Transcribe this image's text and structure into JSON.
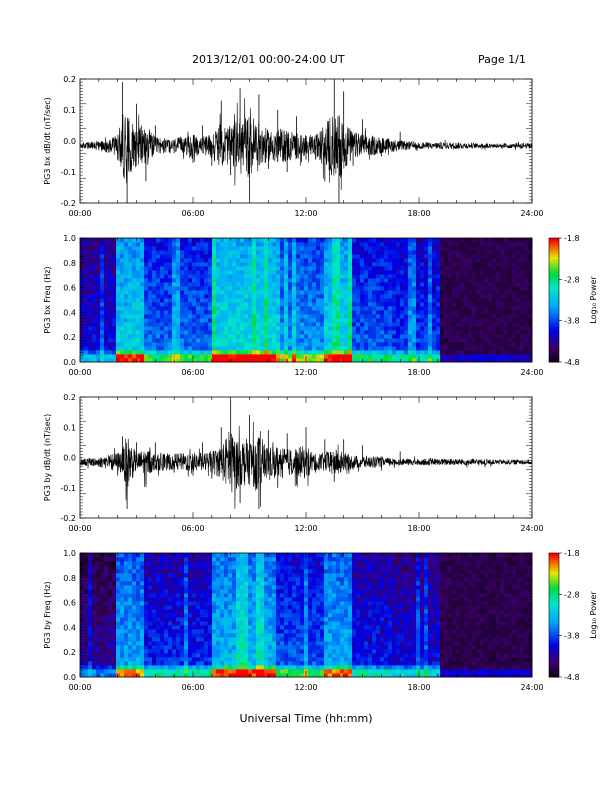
{
  "header": {
    "date_range": "2013/12/01   00:00-24:00 UT",
    "page": "Page 1/1"
  },
  "xlabel": "Universal Time (hh:mm)",
  "colorbar": {
    "label": "Log₁₀ Power",
    "ticks": [
      "-1.8",
      "-2.8",
      "-3.8",
      "-4.8"
    ]
  },
  "chart_data": [
    {
      "type": "line",
      "ylabel": "PG3 bx dB/dt (nT/sec)",
      "xlim": [
        "00:00",
        "24:00"
      ],
      "xticks": [
        "00:00",
        "06:00",
        "12:00",
        "18:00",
        "24:00"
      ],
      "ylim": [
        -0.2,
        0.2
      ],
      "yticks": [
        "-0.2",
        "-0.1",
        "0.0",
        "0.1",
        "0.2"
      ],
      "series": [
        {
          "x": [
            "00:00",
            "01:00",
            "02:00",
            "02:15",
            "02:30",
            "03:00",
            "03:30",
            "04:00",
            "05:00",
            "06:00",
            "06:30",
            "07:00",
            "07:30",
            "08:00",
            "08:30",
            "09:00",
            "09:30",
            "10:00",
            "10:30",
            "11:00",
            "11:30",
            "12:00",
            "12:30",
            "13:00",
            "13:30",
            "13:45",
            "14:00",
            "14:30",
            "15:00",
            "16:00",
            "17:00",
            "18:00",
            "19:00",
            "20:00",
            "21:00",
            "22:00",
            "23:00",
            "24:00"
          ],
          "y": [
            -0.015,
            -0.03,
            -0.06,
            0.19,
            -0.2,
            0.12,
            -0.13,
            0.05,
            -0.04,
            -0.07,
            0.05,
            -0.08,
            0.13,
            -0.11,
            0.17,
            -0.19,
            0.15,
            -0.09,
            0.1,
            -0.1,
            0.08,
            -0.06,
            -0.06,
            -0.13,
            0.2,
            -0.2,
            0.16,
            -0.08,
            0.07,
            -0.05,
            0.03,
            -0.02,
            -0.02,
            -0.02,
            -0.015,
            -0.015,
            -0.015,
            -0.015
          ]
        }
      ]
    },
    {
      "type": "heatmap",
      "ylabel": "PG3 bx Freq (Hz)",
      "xlim": [
        "00:00",
        "24:00"
      ],
      "xticks": [
        "00:00",
        "06:00",
        "12:00",
        "18:00",
        "24:00"
      ],
      "ylim": [
        0.0,
        1.0
      ],
      "yticks": [
        "0.0",
        "0.2",
        "0.4",
        "0.6",
        "0.8",
        "1.0"
      ],
      "zlim": [
        -4.8,
        -1.8
      ],
      "zlabel": "Log₁₀ Power"
    },
    {
      "type": "line",
      "ylabel": "PG3 by dB/dt (nT/sec)",
      "xlim": [
        "00:00",
        "24:00"
      ],
      "xticks": [
        "00:00",
        "06:00",
        "12:00",
        "18:00",
        "24:00"
      ],
      "ylim": [
        -0.2,
        0.2
      ],
      "yticks": [
        "-0.2",
        "-0.1",
        "0.0",
        "0.1",
        "0.2"
      ],
      "series": [
        {
          "x": [
            "00:00",
            "01:00",
            "02:00",
            "02:15",
            "02:30",
            "03:00",
            "03:30",
            "04:00",
            "05:00",
            "06:00",
            "06:30",
            "07:00",
            "07:30",
            "08:00",
            "08:30",
            "09:00",
            "09:30",
            "10:00",
            "10:30",
            "11:00",
            "11:30",
            "12:00",
            "12:30",
            "13:00",
            "13:30",
            "14:00",
            "14:30",
            "15:00",
            "16:00",
            "17:00",
            "18:00",
            "19:00",
            "20:00",
            "21:00",
            "22:00",
            "23:00",
            "24:00"
          ],
          "y": [
            -0.02,
            -0.03,
            -0.06,
            0.07,
            -0.17,
            0.05,
            -0.09,
            0.05,
            -0.05,
            -0.06,
            0.05,
            -0.07,
            0.1,
            0.19,
            -0.15,
            0.14,
            -0.17,
            0.09,
            -0.1,
            0.08,
            -0.09,
            0.1,
            -0.05,
            0.06,
            -0.08,
            0.06,
            -0.04,
            0.04,
            -0.03,
            0.02,
            -0.02,
            -0.02,
            -0.02,
            -0.02,
            -0.015,
            -0.015,
            -0.015
          ]
        }
      ]
    },
    {
      "type": "heatmap",
      "ylabel": "PG3 by Freq (Hz)",
      "xlim": [
        "00:00",
        "24:00"
      ],
      "xticks": [
        "00:00",
        "06:00",
        "12:00",
        "18:00",
        "24:00"
      ],
      "ylim": [
        0.0,
        1.0
      ],
      "yticks": [
        "0.0",
        "0.2",
        "0.4",
        "0.6",
        "0.8",
        "1.0"
      ],
      "zlim": [
        -4.8,
        -1.8
      ],
      "zlabel": "Log₁₀ Power"
    }
  ]
}
